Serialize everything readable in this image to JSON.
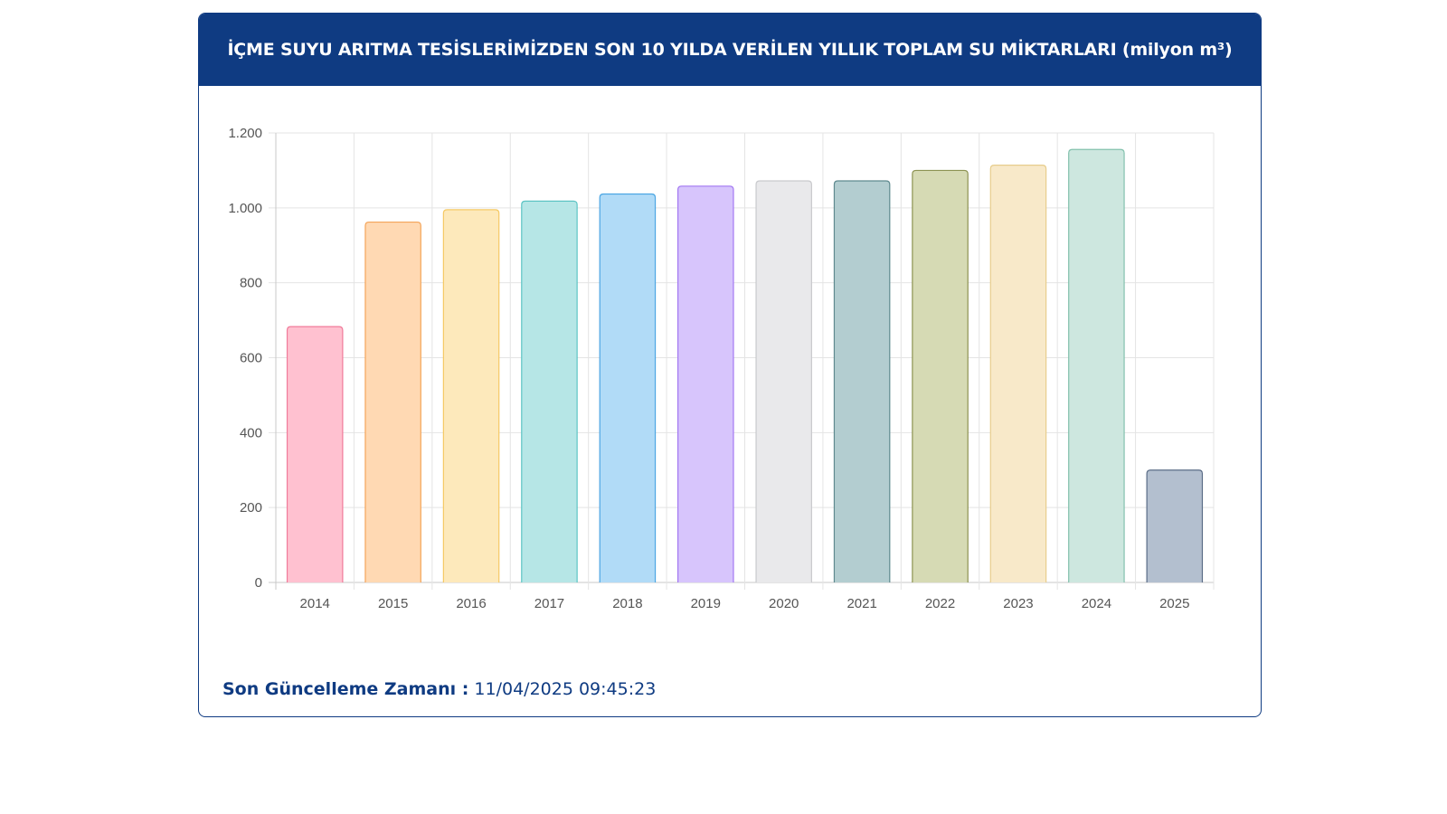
{
  "header": {
    "title": "İÇME SUYU ARITMA TESİSLERİMİZDEN SON 10 YILDA VERİLEN YILLIK TOPLAM SU MİKTARLARI (milyon m³)"
  },
  "footer": {
    "label": "Son Güncelleme Zamanı :",
    "value": "11/04/2025 09:45:23"
  },
  "chart_data": {
    "type": "bar",
    "categories": [
      "2014",
      "2015",
      "2016",
      "2017",
      "2018",
      "2019",
      "2020",
      "2021",
      "2022",
      "2023",
      "2024",
      "2025"
    ],
    "values": [
      683,
      962,
      995,
      1018,
      1037,
      1058,
      1072,
      1072,
      1100,
      1114,
      1156,
      300
    ],
    "ylim": [
      0,
      1200
    ],
    "yticks": [
      0,
      200,
      400,
      600,
      800,
      1000,
      1200
    ],
    "ytick_labels": [
      "0",
      "200",
      "400",
      "600",
      "800",
      "1.000",
      "1.200"
    ],
    "grid": true,
    "legend": "none",
    "colors": [
      {
        "fill": "#ffc1d0",
        "stroke": "#f07b9a"
      },
      {
        "fill": "#ffd9b3",
        "stroke": "#f4a55b"
      },
      {
        "fill": "#fde9bb",
        "stroke": "#f5c964"
      },
      {
        "fill": "#b6e6e6",
        "stroke": "#5cc4c4"
      },
      {
        "fill": "#b1dbf7",
        "stroke": "#4ca6e3"
      },
      {
        "fill": "#d7c5fc",
        "stroke": "#a277f2"
      },
      {
        "fill": "#e9e9eb",
        "stroke": "#c9cacd"
      },
      {
        "fill": "#b3cdd0",
        "stroke": "#5f8a8f"
      },
      {
        "fill": "#d6dab4",
        "stroke": "#8d9352"
      },
      {
        "fill": "#f8e9c9",
        "stroke": "#e7cd8d"
      },
      {
        "fill": "#cde7df",
        "stroke": "#82c1ad"
      },
      {
        "fill": "#b3bfcf",
        "stroke": "#5b6d87"
      }
    ]
  }
}
